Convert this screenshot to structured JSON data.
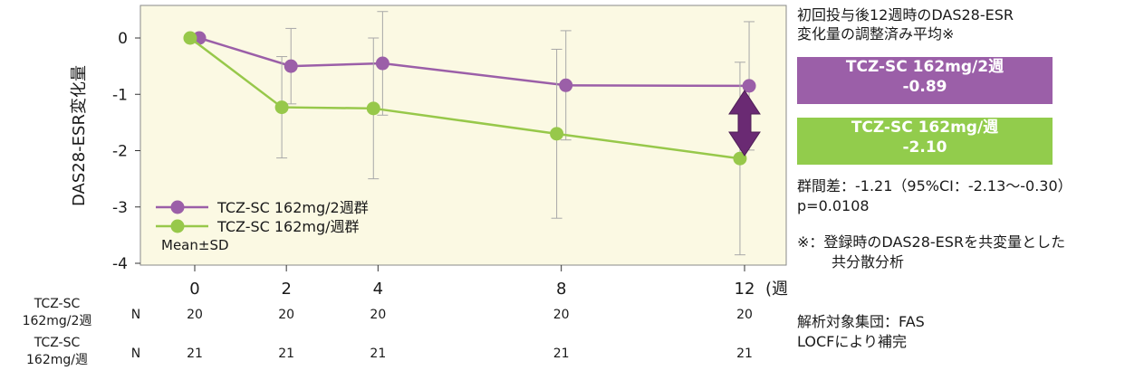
{
  "chart_data": {
    "type": "line",
    "ylabel": "DAS28-ESR変化量",
    "x_unit": "(週)",
    "x": [
      0,
      2,
      4,
      8,
      12
    ],
    "ylim": [
      -4,
      0.5
    ],
    "yticks": [
      0,
      -1,
      -2,
      -3,
      -4
    ],
    "series": [
      {
        "name": "TCZ-SC 162mg/2週群",
        "color": "#9b5fa8",
        "x": [
          0.1,
          2.1,
          4.1,
          8.1,
          12.1
        ],
        "values": [
          0.0,
          -0.5,
          -0.45,
          -0.84,
          -0.85
        ],
        "sd_upper": [
          null,
          0.17,
          0.47,
          0.13,
          0.29
        ],
        "sd_lower": [
          null,
          -1.17,
          -1.37,
          -1.81,
          -1.99
        ]
      },
      {
        "name": "TCZ-SC 162mg/週群",
        "color": "#97c84a",
        "x": [
          -0.1,
          1.9,
          3.9,
          7.9,
          11.9
        ],
        "values": [
          0.0,
          -1.23,
          -1.25,
          -1.7,
          -2.14
        ],
        "sd_upper": [
          null,
          -0.33,
          0.0,
          -0.2,
          -0.43
        ],
        "sd_lower": [
          null,
          -2.13,
          -2.5,
          -3.2,
          -3.85
        ]
      }
    ],
    "legend_note": "Mean±SD",
    "n_table": {
      "header": "N",
      "rows": [
        {
          "label_line1": "TCZ-SC",
          "label_line2": "162mg/2週",
          "values": [
            20,
            20,
            20,
            20,
            20
          ]
        },
        {
          "label_line1": "TCZ-SC",
          "label_line2": "162mg/週",
          "values": [
            21,
            21,
            21,
            21,
            21
          ]
        }
      ]
    }
  },
  "side": {
    "title_line1": "初回投与後12週時のDAS28-ESR",
    "title_line2": "変化量の調整済み平均※",
    "box1_label": "TCZ-SC 162mg/2週",
    "box1_value": "-0.89",
    "box1_color": "#9b5fa8",
    "box2_label": "TCZ-SC 162mg/週",
    "box2_value": "-2.10",
    "box2_color": "#92cc4c",
    "diff_line1": "群間差：-1.21（95%CI：-2.13〜-0.30）",
    "diff_line2": "p=0.0108",
    "note_line1": "※：登録時のDAS28-ESRを共変量とした",
    "note_line2": "共分散分析",
    "analysis_line1": "解析対象集団：FAS",
    "analysis_line2": "LOCFにより補完"
  },
  "arrow_color": "#6a2a73"
}
